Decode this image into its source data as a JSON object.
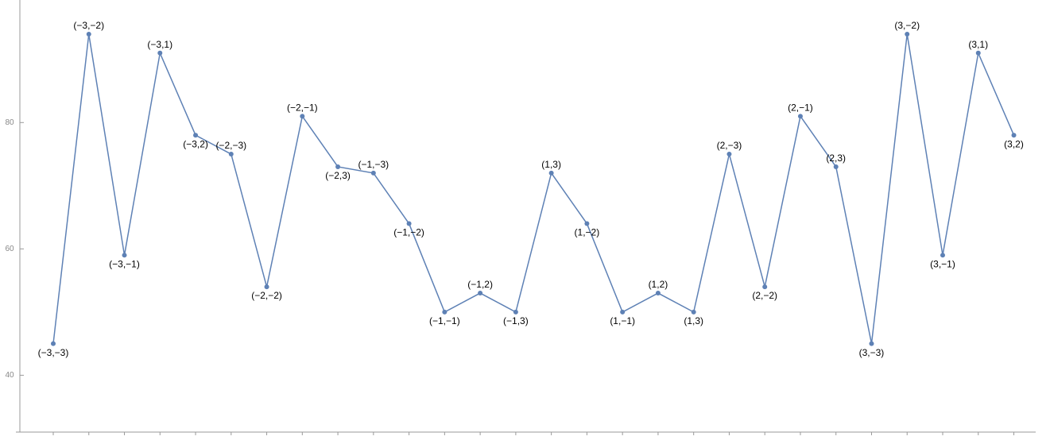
{
  "chart_data": {
    "type": "line",
    "color": "#5e81b5",
    "categories": [
      "(−3,−3)",
      "(−3,−2)",
      "(−3,−1)",
      "(−3,1)",
      "(−3,2)",
      "(−2,−3)",
      "(−2,−2)",
      "(−2,−1)",
      "(−2,3)",
      "(−1,−3)",
      "(−1,−2)",
      "(−1,−1)",
      "(−1,2)",
      "(−1,3)",
      "(1,3)",
      "(1,−2)",
      "(1,−1)",
      "(1,2)",
      "(1,3)",
      "(2,−3)",
      "(2,−2)",
      "(2,−1)",
      "(2,3)",
      "(3,−3)",
      "(3,−2)",
      "(3,−1)",
      "(3,1)",
      "(3,2)"
    ],
    "values": [
      45,
      94,
      59,
      91,
      78,
      75,
      54,
      81,
      73,
      72,
      64,
      50,
      53,
      50,
      72,
      64,
      50,
      53,
      50,
      75,
      54,
      81,
      73,
      45,
      94,
      59,
      91,
      78
    ],
    "ylim": [
      31,
      99.4
    ],
    "yticks": [
      40,
      60,
      80
    ]
  }
}
